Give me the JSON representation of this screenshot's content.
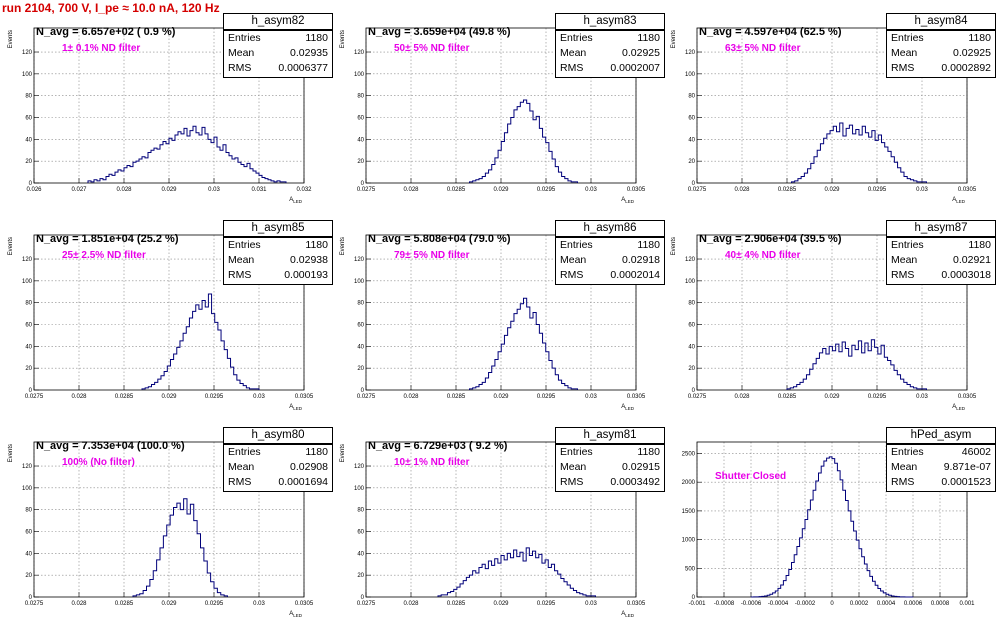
{
  "header": {
    "title": "run 2104,   700 V, I_pe ≈ 10.0 nA, 120 Hz"
  },
  "colors": {
    "title": "#d40000",
    "histogram": "#00007a",
    "filter_text": "#e800e8",
    "grid": "#888888"
  },
  "chart_data": [
    {
      "type": "histogram",
      "hist_name": "h_asym82",
      "navg_text": "N_avg = 6.657e+02 ( 0.9 %)",
      "filter_text": "1± 0.1% ND filter",
      "stats": {
        "entries_label": "Entries",
        "entries": "1180",
        "mean_label": "Mean",
        "mean": "0.02935",
        "rms_label": "RMS",
        "rms": "0.0006377"
      },
      "ylabel": "Events",
      "xlabel": "A_LED",
      "xlim": [
        0.026,
        0.032
      ],
      "ylim": [
        0,
        142
      ],
      "yticks": [
        0,
        20,
        40,
        60,
        80,
        100,
        120
      ],
      "xticks": [
        0.026,
        0.027,
        0.028,
        0.029,
        0.03,
        0.031,
        0.032
      ],
      "xtick_labels": [
        "0.026",
        "0.027",
        "0.028",
        "0.029",
        "0.03",
        "0.031",
        "0.032"
      ],
      "grid": true,
      "bin_range": [
        0.0272,
        0.0316
      ],
      "values": [
        2,
        1,
        3,
        2,
        4,
        3,
        6,
        8,
        7,
        10,
        12,
        11,
        14,
        16,
        15,
        19,
        20,
        22,
        24,
        23,
        28,
        30,
        32,
        31,
        35,
        38,
        36,
        41,
        39,
        44,
        47,
        45,
        50,
        43,
        48,
        52,
        46,
        44,
        51,
        45,
        40,
        37,
        42,
        33,
        30,
        35,
        28,
        25,
        22,
        23,
        19,
        17,
        15,
        18,
        13,
        11,
        9,
        7,
        5,
        4,
        3,
        2,
        1,
        2,
        1,
        1
      ]
    },
    {
      "type": "histogram",
      "hist_name": "h_asym83",
      "navg_text": "N_avg = 3.659e+04 (49.8 %)",
      "filter_text": "50± 5% ND filter",
      "stats": {
        "entries_label": "Entries",
        "entries": "1180",
        "mean_label": "Mean",
        "mean": "0.02925",
        "rms_label": "RMS",
        "rms": "0.0002007"
      },
      "ylabel": "Events",
      "xlabel": "A_LED",
      "xlim": [
        0.0275,
        0.0305
      ],
      "ylim": [
        0,
        142
      ],
      "yticks": [
        0,
        20,
        40,
        60,
        80,
        100,
        120
      ],
      "xticks": [
        0.0275,
        0.028,
        0.0285,
        0.029,
        0.0295,
        0.03,
        0.0305
      ],
      "xtick_labels": [
        "0.0275",
        "0.028",
        "0.0285",
        "0.029",
        "0.0295",
        "0.03",
        "0.0305"
      ],
      "grid": true,
      "bin_range": [
        0.02865,
        0.02985
      ],
      "values": [
        1,
        2,
        3,
        4,
        6,
        9,
        12,
        17,
        23,
        30,
        38,
        46,
        54,
        60,
        67,
        70,
        74,
        76,
        73,
        66,
        58,
        61,
        50,
        42,
        37,
        29,
        22,
        15,
        10,
        6,
        4,
        2,
        1,
        1
      ]
    },
    {
      "type": "histogram",
      "hist_name": "h_asym84",
      "navg_text": "N_avg = 4.597e+04 (62.5 %)",
      "filter_text": "63± 5% ND filter",
      "stats": {
        "entries_label": "Entries",
        "entries": "1180",
        "mean_label": "Mean",
        "mean": "0.02925",
        "rms_label": "RMS",
        "rms": "0.0002892"
      },
      "ylabel": "Events",
      "xlabel": "A_LED",
      "xlim": [
        0.0275,
        0.0305
      ],
      "ylim": [
        0,
        142
      ],
      "yticks": [
        0,
        20,
        40,
        60,
        80,
        100,
        120
      ],
      "xticks": [
        0.0275,
        0.028,
        0.0285,
        0.029,
        0.0295,
        0.03,
        0.0305
      ],
      "xtick_labels": [
        "0.0275",
        "0.028",
        "0.0285",
        "0.029",
        "0.0295",
        "0.03",
        "0.0305"
      ],
      "grid": true,
      "bin_range": [
        0.02855,
        0.03005
      ],
      "values": [
        1,
        2,
        4,
        6,
        9,
        13,
        18,
        24,
        30,
        36,
        41,
        45,
        48,
        52,
        47,
        55,
        43,
        50,
        53,
        45,
        49,
        44,
        52,
        46,
        42,
        48,
        39,
        44,
        37,
        33,
        29,
        24,
        19,
        14,
        10,
        6,
        4,
        3,
        2,
        1,
        1,
        1
      ]
    },
    {
      "type": "histogram",
      "hist_name": "h_asym85",
      "navg_text": "N_avg = 1.851e+04 (25.2 %)",
      "filter_text": "25± 2.5% ND filter",
      "stats": {
        "entries_label": "Entries",
        "entries": "1180",
        "mean_label": "Mean",
        "mean": "0.02938",
        "rms_label": "RMS",
        "rms": "0.000193"
      },
      "ylabel": "Events",
      "xlabel": "A_LED",
      "xlim": [
        0.0275,
        0.0305
      ],
      "ylim": [
        0,
        142
      ],
      "yticks": [
        0,
        20,
        40,
        60,
        80,
        100,
        120
      ],
      "xticks": [
        0.0275,
        0.028,
        0.0285,
        0.029,
        0.0295,
        0.03,
        0.0305
      ],
      "xtick_labels": [
        "0.0275",
        "0.028",
        "0.0285",
        "0.029",
        "0.0295",
        "0.03",
        "0.0305"
      ],
      "grid": true,
      "bin_range": [
        0.0287,
        0.03
      ],
      "values": [
        1,
        2,
        3,
        5,
        7,
        10,
        13,
        17,
        22,
        28,
        33,
        39,
        45,
        52,
        58,
        66,
        72,
        78,
        74,
        82,
        76,
        88,
        70,
        62,
        55,
        45,
        37,
        29,
        21,
        14,
        9,
        6,
        4,
        2,
        1,
        1,
        1
      ]
    },
    {
      "type": "histogram",
      "hist_name": "h_asym86",
      "navg_text": "N_avg = 5.808e+04 (79.0 %)",
      "filter_text": "79± 5% ND filter",
      "stats": {
        "entries_label": "Entries",
        "entries": "1180",
        "mean_label": "Mean",
        "mean": "0.02918",
        "rms_label": "RMS",
        "rms": "0.0002014"
      },
      "ylabel": "Events",
      "xlabel": "A_LED",
      "xlim": [
        0.0275,
        0.0305
      ],
      "ylim": [
        0,
        142
      ],
      "yticks": [
        0,
        20,
        40,
        60,
        80,
        100,
        120
      ],
      "xticks": [
        0.0275,
        0.028,
        0.0285,
        0.029,
        0.0295,
        0.03,
        0.0305
      ],
      "xtick_labels": [
        "0.0275",
        "0.028",
        "0.0285",
        "0.029",
        "0.0295",
        "0.03",
        "0.0305"
      ],
      "grid": true,
      "bin_range": [
        0.02865,
        0.02985
      ],
      "values": [
        1,
        2,
        3,
        5,
        7,
        11,
        16,
        22,
        28,
        35,
        42,
        50,
        57,
        63,
        70,
        74,
        79,
        84,
        76,
        66,
        71,
        60,
        52,
        43,
        35,
        27,
        20,
        14,
        9,
        6,
        4,
        2,
        1,
        1
      ]
    },
    {
      "type": "histogram",
      "hist_name": "h_asym87",
      "navg_text": "N_avg = 2.906e+04 (39.5 %)",
      "filter_text": "40± 4% ND filter",
      "stats": {
        "entries_label": "Entries",
        "entries": "1180",
        "mean_label": "Mean",
        "mean": "0.02921",
        "rms_label": "RMS",
        "rms": "0.0003018"
      },
      "ylabel": "Events",
      "xlabel": "A_LED",
      "xlim": [
        0.0275,
        0.0305
      ],
      "ylim": [
        0,
        142
      ],
      "yticks": [
        0,
        20,
        40,
        60,
        80,
        100,
        120
      ],
      "xticks": [
        0.0275,
        0.028,
        0.0285,
        0.029,
        0.0295,
        0.03,
        0.0305
      ],
      "xtick_labels": [
        "0.0275",
        "0.028",
        "0.0285",
        "0.029",
        "0.0295",
        "0.03",
        "0.0305"
      ],
      "grid": true,
      "bin_range": [
        0.0285,
        0.03005
      ],
      "values": [
        1,
        2,
        3,
        5,
        7,
        10,
        14,
        19,
        24,
        29,
        34,
        38,
        33,
        40,
        36,
        42,
        35,
        44,
        38,
        31,
        41,
        37,
        45,
        34,
        43,
        36,
        46,
        39,
        33,
        41,
        30,
        27,
        23,
        18,
        14,
        10,
        7,
        5,
        3,
        2,
        1,
        1,
        1
      ]
    },
    {
      "type": "histogram",
      "hist_name": "h_asym80",
      "navg_text": "N_avg = 7.353e+04 (100.0 %)",
      "filter_text": "100% (No filter)",
      "stats": {
        "entries_label": "Entries",
        "entries": "1180",
        "mean_label": "Mean",
        "mean": "0.02908",
        "rms_label": "RMS",
        "rms": "0.0001694"
      },
      "ylabel": "Events",
      "xlabel": "A_LED",
      "xlim": [
        0.0275,
        0.0305
      ],
      "ylim": [
        0,
        142
      ],
      "yticks": [
        0,
        20,
        40,
        60,
        80,
        100,
        120
      ],
      "xticks": [
        0.0275,
        0.028,
        0.0285,
        0.029,
        0.0295,
        0.03,
        0.0305
      ],
      "xtick_labels": [
        "0.0275",
        "0.028",
        "0.0285",
        "0.029",
        "0.0295",
        "0.03",
        "0.0305"
      ],
      "grid": true,
      "bin_range": [
        0.0286,
        0.02965
      ],
      "values": [
        1,
        2,
        3,
        6,
        10,
        16,
        24,
        34,
        45,
        56,
        66,
        75,
        82,
        86,
        80,
        90,
        76,
        85,
        70,
        58,
        45,
        33,
        22,
        14,
        8,
        4,
        2,
        1
      ]
    },
    {
      "type": "histogram",
      "hist_name": "h_asym81",
      "navg_text": "N_avg = 6.729e+03 ( 9.2 %)",
      "filter_text": "10± 1% ND filter",
      "stats": {
        "entries_label": "Entries",
        "entries": "1180",
        "mean_label": "Mean",
        "mean": "0.02915",
        "rms_label": "RMS",
        "rms": "0.0003492"
      },
      "ylabel": "Events",
      "xlabel": "A_LED",
      "xlim": [
        0.0275,
        0.0305
      ],
      "ylim": [
        0,
        142
      ],
      "yticks": [
        0,
        20,
        40,
        60,
        80,
        100,
        120
      ],
      "xticks": [
        0.0275,
        0.028,
        0.0285,
        0.029,
        0.0295,
        0.03,
        0.0305
      ],
      "xtick_labels": [
        "0.0275",
        "0.028",
        "0.0285",
        "0.029",
        "0.0295",
        "0.03",
        "0.0305"
      ],
      "grid": true,
      "bin_range": [
        0.0283,
        0.03005
      ],
      "values": [
        1,
        2,
        2,
        4,
        5,
        7,
        9,
        12,
        15,
        18,
        20,
        24,
        22,
        27,
        30,
        26,
        33,
        29,
        35,
        31,
        38,
        34,
        40,
        36,
        43,
        37,
        41,
        33,
        45,
        38,
        42,
        36,
        39,
        31,
        34,
        27,
        30,
        24,
        21,
        17,
        14,
        11,
        8,
        6,
        4,
        3,
        2,
        1,
        1,
        1
      ]
    },
    {
      "type": "histogram",
      "hist_name": "hPed_asym",
      "navg_text": "",
      "filter_text": "Shutter Closed",
      "stats": {
        "entries_label": "Entries",
        "entries": "46002",
        "mean_label": "Mean",
        "mean": "9.871e-07",
        "rms_label": "RMS",
        "rms": "0.0001523"
      },
      "ylabel": "",
      "xlabel": "",
      "xlim": [
        -0.001,
        0.001
      ],
      "ylim": [
        0,
        2700
      ],
      "yticks": [
        0,
        500,
        1000,
        1500,
        2000,
        2500
      ],
      "xticks": [
        -0.001,
        -0.0008,
        -0.0006,
        -0.0004,
        -0.0002,
        0,
        0.0002,
        0.0004,
        0.0006,
        0.0008,
        0.001
      ],
      "xtick_labels": [
        "-0.001",
        "-0.0008",
        "-0.0006",
        "-0.0004",
        "-0.0002",
        "0",
        "0.0002",
        "0.0004",
        "0.0006",
        "0.0008",
        "0.001"
      ],
      "grid": true,
      "bin_range": [
        -0.0006,
        0.0006
      ],
      "values": [
        1,
        2,
        3,
        6,
        10,
        18,
        30,
        48,
        72,
        105,
        150,
        210,
        285,
        375,
        480,
        600,
        735,
        880,
        1030,
        1190,
        1350,
        1520,
        1690,
        1860,
        2020,
        2160,
        2280,
        2370,
        2420,
        2440,
        2410,
        2330,
        2200,
        2040,
        1860,
        1680,
        1500,
        1320,
        1150,
        990,
        840,
        700,
        575,
        460,
        360,
        275,
        205,
        148,
        104,
        72,
        48,
        30,
        18,
        10,
        6,
        3,
        2,
        1,
        1,
        1
      ]
    }
  ]
}
